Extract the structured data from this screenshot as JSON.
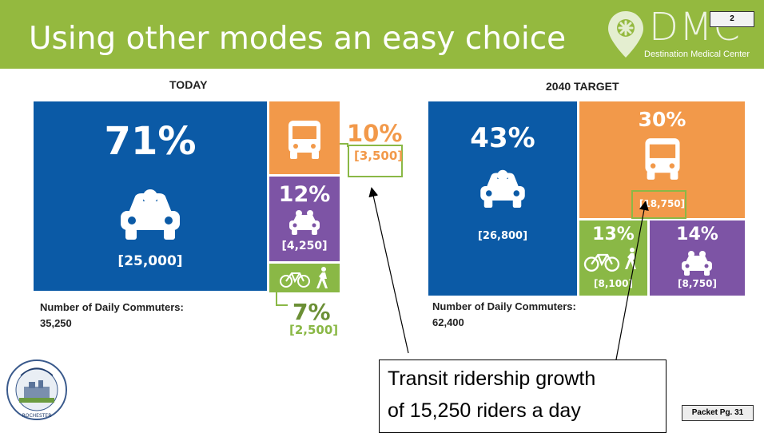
{
  "header": {
    "title": "Using other modes an easy choice",
    "logo_text": "DMC",
    "logo_subtitle": "Destination Medical Center",
    "page_number": "2"
  },
  "today": {
    "title": "TODAY",
    "car": {
      "pct": "71%",
      "count": "[25,000]"
    },
    "transit": {
      "pct": "10%",
      "count": "[3,500]"
    },
    "carpool": {
      "pct": "12%",
      "count": "[4,250]"
    },
    "bike_walk": {
      "pct": "7%",
      "count": "[2,500]"
    },
    "commuters_label": "Number of Daily Commuters:",
    "commuters_value": "35,250"
  },
  "target": {
    "title": "2040 TARGET",
    "car": {
      "pct": "43%",
      "count": "[26,800]"
    },
    "transit": {
      "pct": "30%",
      "count": "[18,750]"
    },
    "bike_walk": {
      "pct": "13%",
      "count": "[8,100]"
    },
    "carpool": {
      "pct": "14%",
      "count": "[8,750]"
    },
    "commuters_label": "Number of Daily Commuters:",
    "commuters_value": "62,400"
  },
  "callout": {
    "line1": "Transit ridership growth",
    "line2": "of 15,250 riders a day"
  },
  "footer": {
    "packet": "Packet Pg. 31",
    "seal_text": "CITY OF ROCHESTER MINNESOTA"
  },
  "colors": {
    "header_green": "#94b93f",
    "car_blue": "#0b5aa6",
    "transit_orange": "#f2994a",
    "carpool_purple": "#7d54a5",
    "bike_green": "#8ab846"
  },
  "icons": [
    "car-icon",
    "bus-icon",
    "carpool-icon",
    "bike-icon",
    "pedestrian-icon",
    "location-pin-icon",
    "city-seal-icon"
  ]
}
